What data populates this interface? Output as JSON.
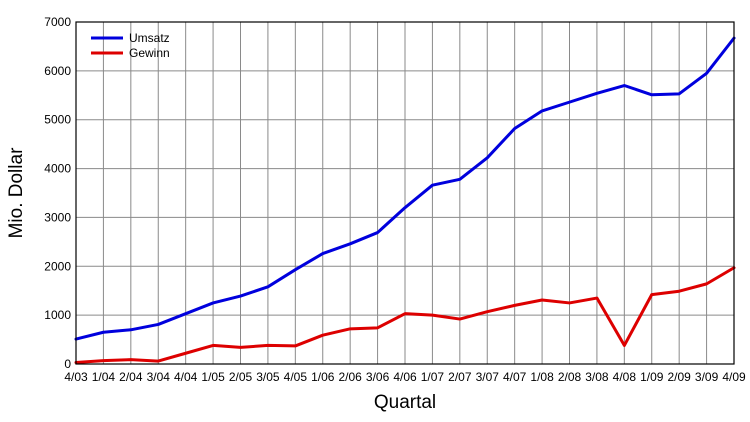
{
  "chart_data": {
    "type": "line",
    "title": "",
    "xlabel": "Quartal",
    "ylabel": "Mio. Dollar",
    "categories": [
      "4/03",
      "1/04",
      "2/04",
      "3/04",
      "4/04",
      "1/05",
      "2/05",
      "3/05",
      "4/05",
      "1/06",
      "2/06",
      "3/06",
      "4/06",
      "1/07",
      "2/07",
      "3/07",
      "4/07",
      "1/08",
      "2/08",
      "3/08",
      "4/08",
      "1/09",
      "2/09",
      "3/09",
      "4/09"
    ],
    "ylim": [
      0,
      7000
    ],
    "yticks": [
      0,
      1000,
      2000,
      3000,
      4000,
      5000,
      6000,
      7000
    ],
    "grid": true,
    "legend_position": "top-left",
    "series": [
      {
        "name": "Umsatz",
        "color": "#0000dd",
        "values": [
          510,
          650,
          700,
          810,
          1030,
          1250,
          1390,
          1580,
          1930,
          2260,
          2460,
          2690,
          3200,
          3660,
          3780,
          4220,
          4820,
          5180,
          5360,
          5540,
          5700,
          5510,
          5530,
          5950,
          6670
        ]
      },
      {
        "name": "Gewinn",
        "color": "#dd0000",
        "values": [
          30,
          70,
          90,
          60,
          220,
          380,
          340,
          380,
          370,
          590,
          720,
          740,
          1030,
          1000,
          920,
          1070,
          1200,
          1310,
          1250,
          1350,
          380,
          1420,
          1490,
          1640,
          1970
        ]
      }
    ]
  }
}
